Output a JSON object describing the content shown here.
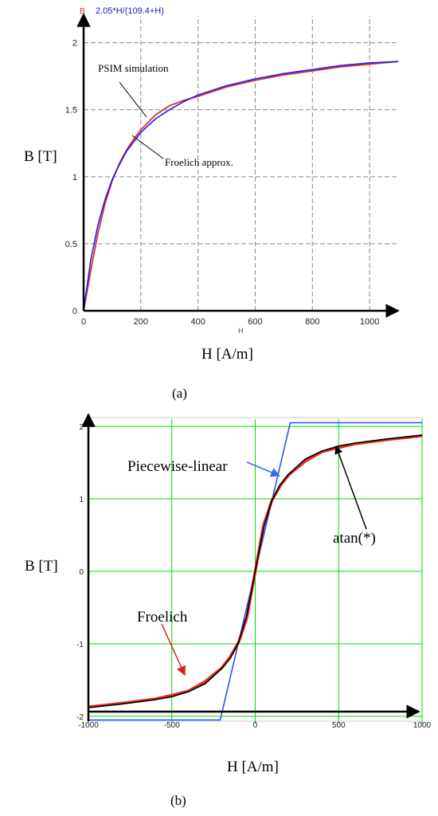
{
  "figure_captions": {
    "a": "(a)",
    "b": "(b)"
  },
  "chart_data": [
    {
      "id": "a",
      "type": "line",
      "header_var": "B",
      "header_formula": "2.05*H/(109.4+H)",
      "xlabel": "H [A/m]",
      "ylabel": "B [T]",
      "axis_x_name": "H",
      "xlim": [
        0,
        1100
      ],
      "ylim": [
        0,
        2.2
      ],
      "xticks": [
        0,
        200,
        400,
        600,
        800,
        1000
      ],
      "yticks": [
        0,
        0.5,
        1,
        1.5,
        2
      ],
      "xtick_labels": [
        "0",
        "200",
        "400",
        "600",
        "800",
        "1000"
      ],
      "ytick_labels": [
        "0",
        "0.5",
        "1",
        "1.5",
        "2"
      ],
      "grid": true,
      "annotations": [
        {
          "text": "PSIM simulation",
          "target_series": "PSIM simulation"
        },
        {
          "text": "Froelich approx.",
          "target_series": "Froelich approx."
        }
      ],
      "colors": {
        "grid": "#888888",
        "axis": "#000000",
        "blue": "#1a1aff",
        "red": "#e0301e",
        "header_red": "#d43030",
        "header_blue": "#1a1ab3"
      },
      "series": [
        {
          "name": "PSIM simulation",
          "color": "#e0301e",
          "x": [
            0,
            25,
            50,
            75,
            100,
            125,
            150,
            175,
            200,
            250,
            300,
            350,
            400,
            500,
            600,
            700,
            800,
            900,
            1000,
            1100
          ],
          "y": [
            0,
            0.3,
            0.58,
            0.8,
            0.97,
            1.1,
            1.2,
            1.28,
            1.35,
            1.46,
            1.53,
            1.57,
            1.6,
            1.67,
            1.72,
            1.76,
            1.79,
            1.82,
            1.84,
            1.86
          ]
        },
        {
          "name": "Froelich approx.",
          "color": "#1a1aff",
          "x": [
            0,
            25,
            50,
            75,
            100,
            125,
            150,
            175,
            200,
            250,
            300,
            350,
            400,
            500,
            600,
            700,
            800,
            900,
            1000,
            1100
          ],
          "y": [
            0,
            0.38,
            0.64,
            0.83,
            0.98,
            1.09,
            1.19,
            1.26,
            1.33,
            1.43,
            1.5,
            1.56,
            1.61,
            1.68,
            1.73,
            1.77,
            1.8,
            1.83,
            1.85,
            1.86
          ]
        }
      ]
    },
    {
      "id": "b",
      "type": "line",
      "xlabel": "H [A/m]",
      "ylabel": "B [T]",
      "xlim": [
        -1000,
        1000
      ],
      "ylim": [
        -2.1,
        2.1
      ],
      "xticks": [
        -1000,
        -500,
        0,
        500,
        1000
      ],
      "yticks": [
        -2,
        -1,
        0,
        1,
        2
      ],
      "xtick_labels": [
        "-1000",
        "-500",
        "0",
        "500",
        "1000"
      ],
      "ytick_labels": [
        "-2",
        "-1",
        "0",
        "1",
        "2"
      ],
      "grid": true,
      "annotations": [
        {
          "text": "Piecewise-linear",
          "arrow_color": "#3a6fd8"
        },
        {
          "text": "atan(*)",
          "arrow_color": "#000000"
        },
        {
          "text": "Froelich",
          "arrow_color": "#d42020"
        }
      ],
      "colors": {
        "grid": "#00dd00",
        "axis": "#000000"
      },
      "series": [
        {
          "name": "Piecewise-linear",
          "color": "#2a50ff",
          "x": [
            -1000,
            -210,
            210,
            1000
          ],
          "y": [
            -2.05,
            -2.05,
            2.05,
            2.05
          ]
        },
        {
          "name": "Froelich",
          "color": "#e0301e",
          "x": [
            -1000,
            -800,
            -600,
            -500,
            -400,
            -300,
            -200,
            -150,
            -100,
            -50,
            0,
            50,
            100,
            150,
            200,
            300,
            400,
            500,
            600,
            800,
            1000
          ],
          "y": [
            -1.87,
            -1.82,
            -1.76,
            -1.71,
            -1.65,
            -1.52,
            -1.33,
            -1.18,
            -0.98,
            -0.64,
            0,
            0.64,
            0.98,
            1.18,
            1.33,
            1.52,
            1.65,
            1.71,
            1.76,
            1.82,
            1.87
          ]
        },
        {
          "name": "atan(*)",
          "color": "#000000",
          "x": [
            -1000,
            -800,
            -600,
            -500,
            -400,
            -300,
            -200,
            -150,
            -100,
            -50,
            0,
            50,
            100,
            150,
            200,
            300,
            400,
            500,
            600,
            800,
            1000
          ],
          "y": [
            -1.88,
            -1.83,
            -1.77,
            -1.73,
            -1.66,
            -1.55,
            -1.34,
            -1.2,
            -0.98,
            -0.6,
            0,
            0.6,
            0.98,
            1.2,
            1.34,
            1.55,
            1.66,
            1.73,
            1.77,
            1.83,
            1.88
          ]
        }
      ]
    }
  ]
}
